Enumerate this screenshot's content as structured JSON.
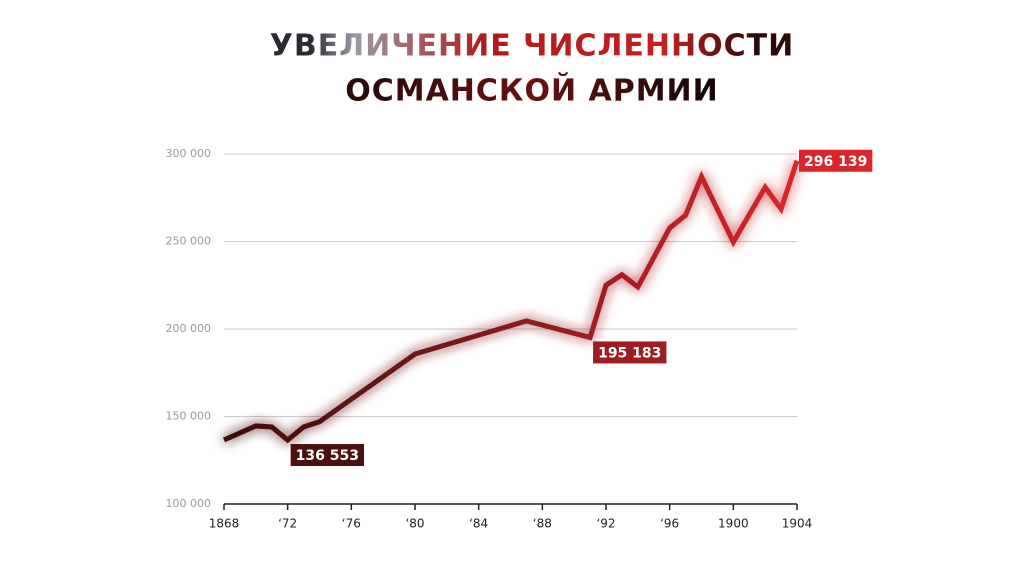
{
  "chart_data": {
    "type": "line",
    "title": [
      "УВЕЛИЧЕНИЕ ЧИСЛЕННОСТИ",
      "ОСМАНСКОЙ АРМИИ"
    ],
    "x": [
      1868,
      1870,
      1871,
      1872,
      1873,
      1874,
      1880,
      1887,
      1891,
      1892,
      1893,
      1894,
      1896,
      1897,
      1898,
      1900,
      1902,
      1903,
      1904
    ],
    "values": [
      136600,
      144600,
      144000,
      136553,
      144000,
      147000,
      185700,
      204600,
      195183,
      225000,
      231000,
      224000,
      257700,
      265000,
      287000,
      249700,
      281000,
      268600,
      296139
    ],
    "value_labels": [
      null,
      null,
      null,
      "136 553",
      null,
      null,
      null,
      null,
      "195 183",
      null,
      null,
      null,
      null,
      null,
      null,
      null,
      null,
      null,
      "296 139"
    ],
    "colors": [
      "#3a0d0d",
      "#d8262a"
    ],
    "xlim": [
      1868,
      1904
    ],
    "xticks": [
      1868,
      {
        "value": 1872,
        "label": "‘72"
      },
      {
        "value": 1876,
        "label": "‘76"
      },
      {
        "value": 1880,
        "label": "‘80"
      },
      {
        "value": 1884,
        "label": "‘84"
      },
      {
        "value": 1888,
        "label": "‘88"
      },
      {
        "value": 1892,
        "label": "‘92"
      },
      {
        "value": 1896,
        "label": "‘96"
      },
      1900,
      1904
    ],
    "ylim": [
      100000,
      300000
    ],
    "yticks": [
      {
        "value": 100000,
        "label": "100 000"
      },
      {
        "value": 150000,
        "label": "150 000"
      },
      {
        "value": 200000,
        "label": "200 000"
      },
      {
        "value": 250000,
        "label": "250 000"
      },
      {
        "value": 300000,
        "label": "300 000"
      }
    ],
    "grid": true
  }
}
